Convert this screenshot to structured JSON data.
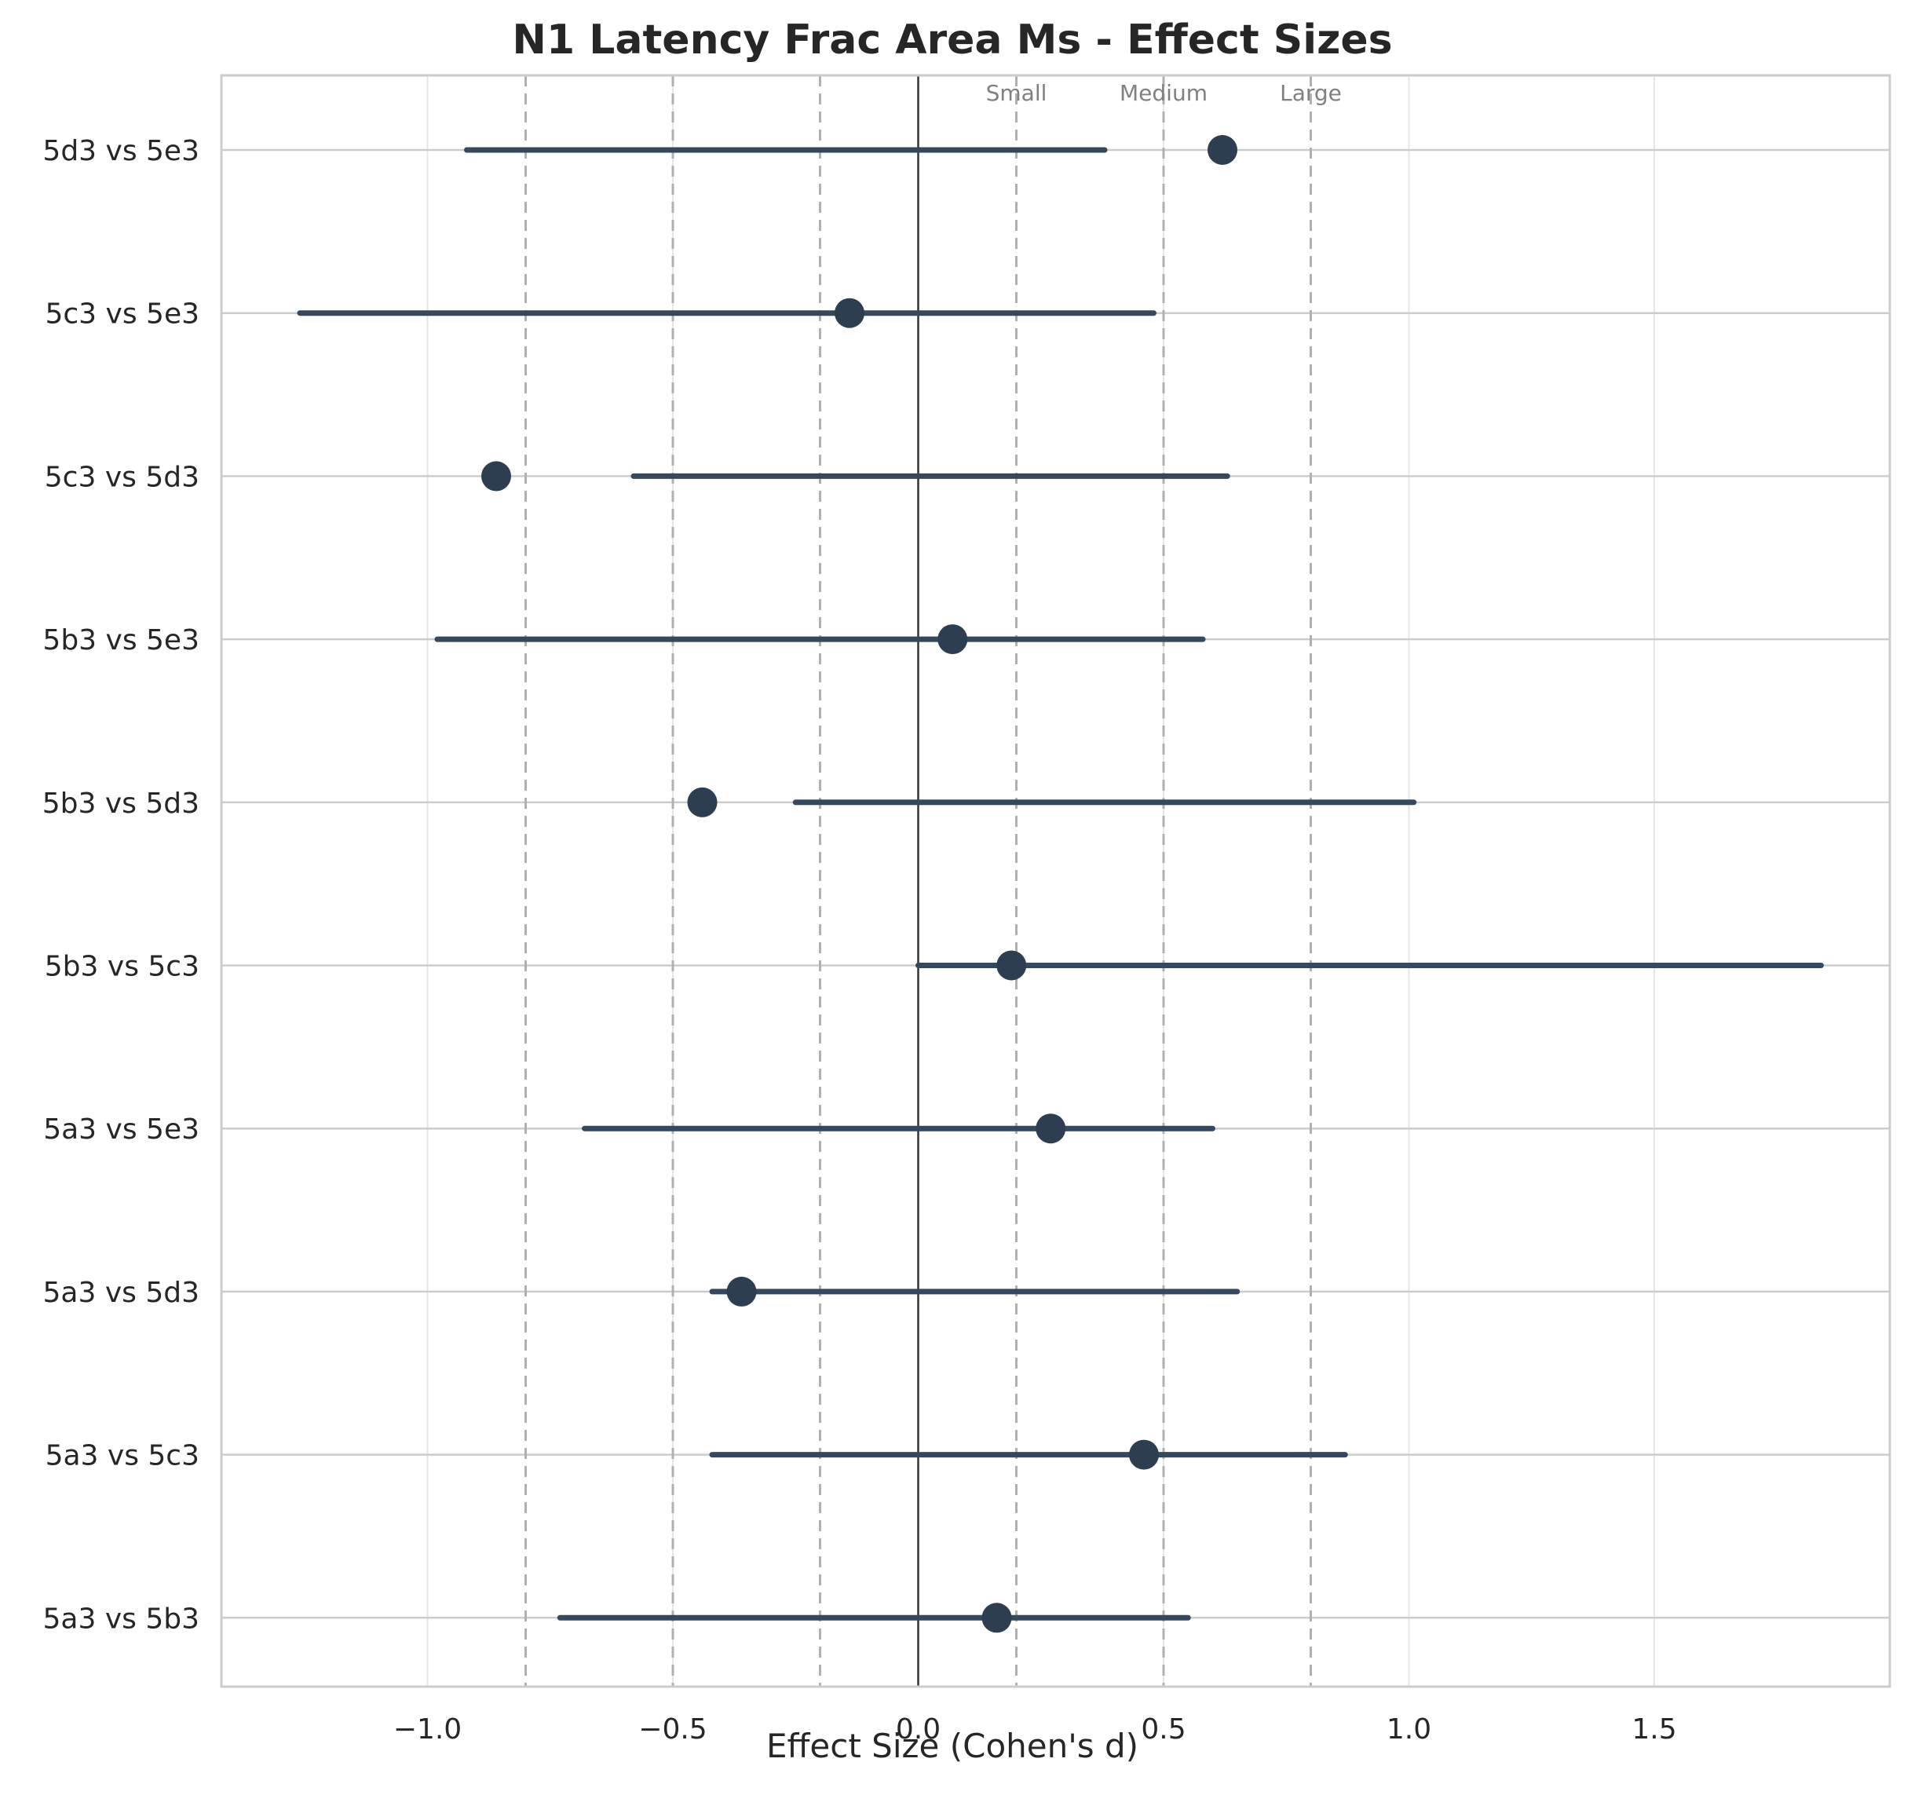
{
  "chart_data": {
    "type": "scatter",
    "title": "N1 Latency Frac Area Ms - Effect Sizes",
    "xlabel": "Effect Size (Cohen's d)",
    "ylabel": "",
    "xlim": [
      -1.42,
      1.98
    ],
    "xticks": [
      -1.0,
      -0.5,
      0.0,
      0.5,
      1.0,
      1.5
    ],
    "xtick_labels": [
      "−1.0",
      "−0.5",
      "0.0",
      "0.5",
      "1.0",
      "1.5"
    ],
    "grid": true,
    "reference_lines": [
      {
        "value": -0.8,
        "label": ""
      },
      {
        "value": -0.5,
        "label": ""
      },
      {
        "value": -0.2,
        "label": ""
      },
      {
        "value": 0.2,
        "label": "Small"
      },
      {
        "value": 0.5,
        "label": "Medium"
      },
      {
        "value": 0.8,
        "label": "Large"
      }
    ],
    "zero_line": 0.0,
    "comparisons": [
      {
        "label": "5d3 vs 5e3",
        "d": 0.62,
        "ci_low": -0.92,
        "ci_high": 0.38
      },
      {
        "label": "5c3 vs 5e3",
        "d": -0.14,
        "ci_low": -1.26,
        "ci_high": 0.48
      },
      {
        "label": "5c3 vs 5d3",
        "d": -0.86,
        "ci_low": -0.58,
        "ci_high": 0.63
      },
      {
        "label": "5b3 vs 5e3",
        "d": 0.07,
        "ci_low": -0.98,
        "ci_high": 0.58
      },
      {
        "label": "5b3 vs 5d3",
        "d": -0.44,
        "ci_low": -0.25,
        "ci_high": 1.01
      },
      {
        "label": "5b3 vs 5c3",
        "d": 0.19,
        "ci_low": 0.0,
        "ci_high": 1.84
      },
      {
        "label": "5a3 vs 5e3",
        "d": 0.27,
        "ci_low": -0.68,
        "ci_high": 0.6
      },
      {
        "label": "5a3 vs 5d3",
        "d": -0.36,
        "ci_low": -0.42,
        "ci_high": 0.65
      },
      {
        "label": "5a3 vs 5c3",
        "d": 0.46,
        "ci_low": -0.42,
        "ci_high": 0.87
      },
      {
        "label": "5a3 vs 5b3",
        "d": 0.16,
        "ci_low": -0.73,
        "ci_high": 0.55
      }
    ],
    "colors": {
      "point": "#2c3e50",
      "ci_line": "#34495e",
      "reference": "#b0b0b0",
      "zero": "#333333",
      "grid": "#e6e6e6",
      "frame": "#cccccc"
    }
  }
}
